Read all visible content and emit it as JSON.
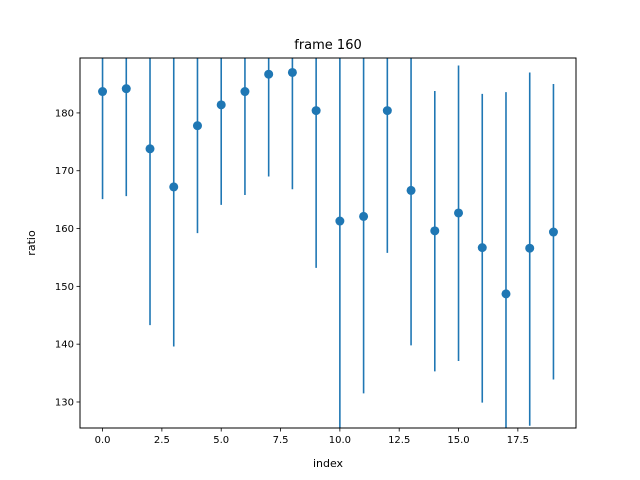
{
  "chart_data": {
    "type": "scatter",
    "title": "frame 160",
    "xlabel": "index",
    "ylabel": "ratio",
    "xlim": [
      -0.95,
      19.95
    ],
    "ylim": [
      125.5,
      189.5
    ],
    "x_ticks": [
      0,
      2.5,
      5,
      7.5,
      10,
      12.5,
      15,
      17.5
    ],
    "x_tick_labels": [
      "0.0",
      "2.5",
      "5.0",
      "7.5",
      "10.0",
      "12.5",
      "15.0",
      "17.5"
    ],
    "y_ticks": [
      130,
      140,
      150,
      160,
      170,
      180
    ],
    "y_tick_labels": [
      "130",
      "140",
      "150",
      "160",
      "170",
      "180"
    ],
    "grid": false,
    "color": "#1f77b4",
    "series": [
      {
        "x": [
          0,
          1,
          2,
          3,
          4,
          5,
          6,
          7,
          8,
          9,
          10,
          11,
          12,
          13,
          14,
          15,
          16,
          17,
          18,
          19
        ],
        "y": [
          183.7,
          184.2,
          173.8,
          167.2,
          177.8,
          181.4,
          183.7,
          186.7,
          187.0,
          180.4,
          161.3,
          162.1,
          180.4,
          166.6,
          159.6,
          162.7,
          156.7,
          148.7,
          156.6,
          159.4
        ],
        "y_low": [
          165.1,
          165.6,
          143.3,
          139.6,
          159.2,
          164.1,
          165.8,
          169.0,
          166.8,
          153.2,
          125.5,
          131.5,
          155.8,
          139.8,
          135.3,
          137.1,
          129.9,
          125.5,
          125.9,
          133.9
        ],
        "y_high": [
          189.5,
          189.5,
          189.5,
          189.5,
          189.5,
          189.5,
          189.5,
          189.5,
          189.5,
          189.5,
          189.5,
          189.5,
          189.5,
          189.5,
          183.8,
          188.2,
          183.3,
          183.6,
          187.0,
          185.0
        ]
      }
    ]
  }
}
